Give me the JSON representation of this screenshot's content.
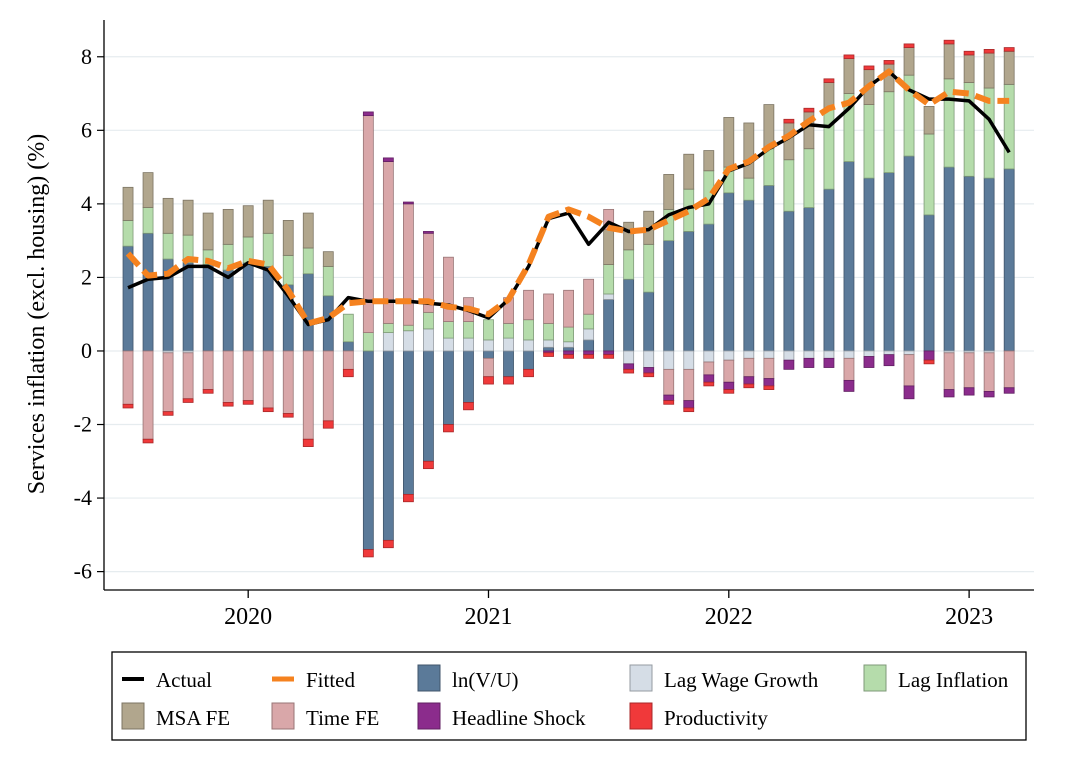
{
  "chart_data": {
    "type": "bar",
    "subtype": "stacked-bar-with-lines",
    "title": "",
    "ylabel": "Services inflation (excl. housing) (%)",
    "xlabel": "",
    "ylim": [
      -6.5,
      9
    ],
    "yticks": [
      -6,
      -4,
      -2,
      0,
      2,
      4,
      6,
      8
    ],
    "xrange": [
      2019.4,
      2023.27
    ],
    "xticks": [
      {
        "value": 2020,
        "label": "2020"
      },
      {
        "value": 2021,
        "label": "2021"
      },
      {
        "value": 2022,
        "label": "2022"
      },
      {
        "value": 2023,
        "label": "2023"
      }
    ],
    "grid": true,
    "periods": [
      2019.5,
      2019.5833,
      2019.6667,
      2019.75,
      2019.8333,
      2019.9167,
      2020.0,
      2020.0833,
      2020.1667,
      2020.25,
      2020.3333,
      2020.4167,
      2020.5,
      2020.5833,
      2020.6667,
      2020.75,
      2020.8333,
      2020.9167,
      2021.0,
      2021.0833,
      2021.1667,
      2021.25,
      2021.3333,
      2021.4167,
      2021.5,
      2021.5833,
      2021.6667,
      2021.75,
      2021.8333,
      2021.9167,
      2022.0,
      2022.0833,
      2022.1667,
      2022.25,
      2022.3333,
      2022.4167,
      2022.5,
      2022.5833,
      2022.6667,
      2022.75,
      2022.8333,
      2022.9167,
      2023.0,
      2023.0833,
      2023.1667
    ],
    "components": [
      {
        "key": "lnvu",
        "name": "ln(V/U)",
        "color": "#5b7a99",
        "values": [
          2.85,
          3.2,
          2.5,
          2.4,
          2.35,
          2.2,
          2.4,
          2.3,
          1.8,
          2.1,
          1.5,
          0.25,
          -5.4,
          -5.15,
          -3.9,
          -3.0,
          -2.0,
          -1.4,
          -0.2,
          -0.7,
          -0.5,
          0.1,
          0.1,
          0.3,
          1.4,
          1.95,
          1.6,
          3.0,
          3.25,
          3.45,
          4.3,
          4.1,
          4.5,
          3.8,
          3.9,
          4.4,
          5.15,
          4.7,
          4.85,
          5.3,
          3.7,
          5.0,
          4.75,
          4.7,
          4.95
        ]
      },
      {
        "key": "wage",
        "name": "Lag Wage Growth",
        "color": "#d5dde6",
        "values": [
          0.0,
          0.0,
          -0.05,
          -0.05,
          0.0,
          0.0,
          0.0,
          0.0,
          0.0,
          0.0,
          0.0,
          0.0,
          0.0,
          0.5,
          0.55,
          0.6,
          0.35,
          0.35,
          0.3,
          0.35,
          0.3,
          0.2,
          0.15,
          0.3,
          0.15,
          -0.35,
          -0.45,
          -0.5,
          -0.5,
          -0.3,
          -0.25,
          -0.2,
          -0.2,
          -0.25,
          -0.2,
          -0.2,
          -0.2,
          -0.15,
          -0.1,
          -0.1,
          0.0,
          -0.05,
          -0.05,
          -0.05,
          0.0
        ]
      },
      {
        "key": "lag",
        "name": "Lag Inflation",
        "color": "#b5dcab",
        "values": [
          0.7,
          0.7,
          0.7,
          0.75,
          0.4,
          0.7,
          0.7,
          0.9,
          0.8,
          0.7,
          0.8,
          0.75,
          0.5,
          0.25,
          0.15,
          0.45,
          0.45,
          0.45,
          0.55,
          0.4,
          0.55,
          0.45,
          0.4,
          0.4,
          0.8,
          0.8,
          1.3,
          0.85,
          1.15,
          1.45,
          0.7,
          0.6,
          1.0,
          1.4,
          1.6,
          2.2,
          1.85,
          2.0,
          2.2,
          2.2,
          2.2,
          2.4,
          2.55,
          2.45,
          2.3
        ]
      },
      {
        "key": "msa",
        "name": "MSA FE",
        "color": "#b1a68d",
        "values": [
          0.9,
          0.95,
          0.95,
          0.95,
          1.0,
          0.95,
          0.85,
          0.9,
          0.95,
          0.95,
          0.4,
          0.0,
          0.0,
          0.0,
          0.0,
          0.0,
          0.0,
          0.0,
          0.0,
          0.0,
          0.0,
          0.0,
          0.0,
          0.0,
          0.95,
          0.75,
          0.9,
          0.95,
          0.95,
          0.55,
          1.35,
          1.5,
          1.2,
          1.0,
          1.0,
          0.7,
          0.95,
          0.95,
          0.75,
          0.75,
          0.75,
          0.95,
          0.75,
          0.95,
          0.9
        ]
      },
      {
        "key": "time",
        "name": "Time FE",
        "color": "#d9a7a9",
        "values": [
          -1.45,
          -2.4,
          -1.6,
          -1.25,
          -1.05,
          -1.4,
          -1.35,
          -1.55,
          -1.7,
          -2.4,
          -1.9,
          -0.5,
          5.9,
          4.4,
          3.3,
          2.15,
          1.75,
          0.65,
          -0.5,
          0.7,
          0.8,
          0.8,
          1.0,
          0.95,
          0.55,
          0.0,
          0.0,
          -0.7,
          -0.85,
          -0.35,
          -0.6,
          -0.5,
          -0.55,
          0.0,
          0.0,
          0.0,
          -0.6,
          0.0,
          0.0,
          -0.85,
          0.0,
          -1.0,
          -0.95,
          -1.05,
          -1.0
        ]
      },
      {
        "key": "headline",
        "name": "Headline Shock",
        "color": "#8b2c8c",
        "values": [
          0.0,
          0.0,
          0.0,
          0.0,
          0.0,
          0.0,
          0.0,
          0.0,
          0.0,
          0.0,
          0.0,
          0.0,
          0.1,
          0.1,
          0.05,
          0.05,
          0.0,
          0.0,
          0.0,
          0.0,
          0.0,
          -0.05,
          -0.1,
          -0.1,
          -0.1,
          -0.15,
          -0.15,
          -0.15,
          -0.2,
          -0.2,
          -0.2,
          -0.2,
          -0.2,
          -0.25,
          -0.25,
          -0.25,
          -0.3,
          -0.3,
          -0.3,
          -0.35,
          -0.25,
          -0.2,
          -0.2,
          -0.15,
          -0.15
        ]
      },
      {
        "key": "prod",
        "name": "Productivity",
        "color": "#f0393a",
        "values": [
          -0.1,
          -0.1,
          -0.1,
          -0.1,
          -0.1,
          -0.1,
          -0.1,
          -0.1,
          -0.1,
          -0.2,
          -0.2,
          -0.2,
          -0.2,
          -0.2,
          -0.2,
          -0.2,
          -0.2,
          -0.2,
          -0.2,
          -0.2,
          -0.2,
          -0.1,
          -0.1,
          -0.1,
          -0.1,
          -0.1,
          -0.1,
          -0.1,
          -0.1,
          -0.1,
          -0.1,
          -0.1,
          -0.1,
          0.1,
          0.1,
          0.1,
          0.1,
          0.1,
          0.1,
          0.1,
          -0.1,
          0.1,
          0.1,
          0.1,
          0.1
        ]
      }
    ],
    "series": [
      {
        "name": "Actual",
        "color": "#000000",
        "style": "solid",
        "values": [
          1.72,
          1.95,
          2.0,
          2.3,
          2.3,
          2.0,
          2.4,
          2.2,
          1.5,
          0.72,
          0.85,
          1.45,
          1.35,
          1.35,
          1.35,
          1.3,
          1.25,
          1.1,
          0.9,
          1.4,
          2.3,
          3.6,
          3.75,
          2.9,
          3.5,
          3.25,
          3.3,
          3.7,
          3.9,
          4.0,
          4.9,
          5.1,
          5.5,
          5.8,
          6.15,
          6.1,
          6.6,
          7.2,
          7.6,
          7.1,
          6.85,
          6.85,
          6.8,
          6.3,
          5.4
        ]
      },
      {
        "name": "Fitted",
        "color": "#f5821f",
        "style": "dashed",
        "values": [
          2.65,
          2.05,
          2.1,
          2.5,
          2.45,
          2.25,
          2.45,
          2.35,
          1.65,
          0.75,
          0.9,
          1.3,
          1.35,
          1.35,
          1.35,
          1.35,
          1.2,
          1.15,
          1.0,
          1.4,
          2.35,
          3.65,
          3.85,
          3.65,
          3.35,
          3.25,
          3.3,
          3.55,
          3.8,
          4.15,
          4.95,
          5.15,
          5.55,
          5.85,
          6.25,
          6.6,
          6.75,
          7.2,
          7.6,
          7.1,
          6.7,
          7.05,
          7.0,
          6.8,
          6.8
        ]
      }
    ],
    "legend": {
      "placement": "bottom",
      "entries": [
        {
          "label": "Actual",
          "kind": "line",
          "key": "actual"
        },
        {
          "label": "Fitted",
          "kind": "dashed",
          "key": "fitted"
        },
        {
          "label": "ln(V/U)",
          "kind": "box",
          "key": "lnvu"
        },
        {
          "label": "Lag Wage Growth",
          "kind": "box",
          "key": "wage"
        },
        {
          "label": "Lag Inflation",
          "kind": "box",
          "key": "lag"
        },
        {
          "label": "MSA FE",
          "kind": "box",
          "key": "msa"
        },
        {
          "label": "Time FE",
          "kind": "box",
          "key": "time"
        },
        {
          "label": "Headline Shock",
          "kind": "box",
          "key": "headline"
        },
        {
          "label": "Productivity",
          "kind": "box",
          "key": "prod"
        }
      ]
    }
  }
}
